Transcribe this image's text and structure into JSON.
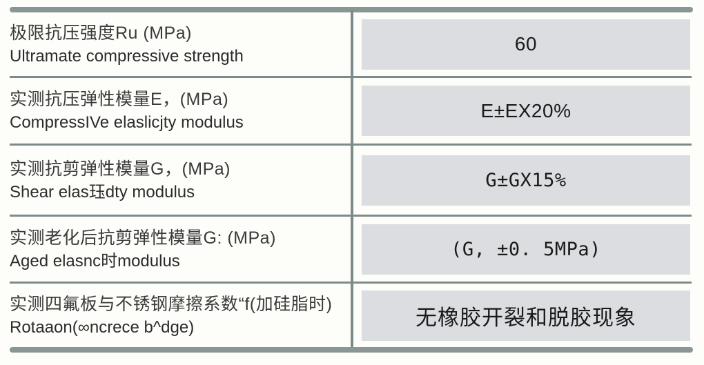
{
  "table": {
    "accent_color": "#8a9696",
    "line_color": "#7d8a8a",
    "value_box_color": "#dcdde0",
    "rows": [
      {
        "label_zh": "极限抗压强度Ru (MPa)",
        "label_en": "Ultramate compressive strength",
        "value": "60"
      },
      {
        "label_zh": "实测抗压弹性模量E，(MPa)",
        "label_en": "CompressIVe elaslicjty modulus",
        "value": "E±EX20%"
      },
      {
        "label_zh": "实测抗剪弹性模量G，(MPa)",
        "label_en": "Shear elas珏dty modulus",
        "value": "G±GX15%"
      },
      {
        "label_zh": "实测老化后抗剪弹性模量G: (MPa)",
        "label_en": "Aged elasnc时modulus",
        "value": "(G, ±0. 5MPa)"
      },
      {
        "label_zh": "实测四氟板与不锈钢摩擦系数“f(加硅脂时)",
        "label_en": "Rotaaon(∞ncrece b^dge)",
        "value": "无橡胶开裂和脱胶现象"
      }
    ]
  }
}
